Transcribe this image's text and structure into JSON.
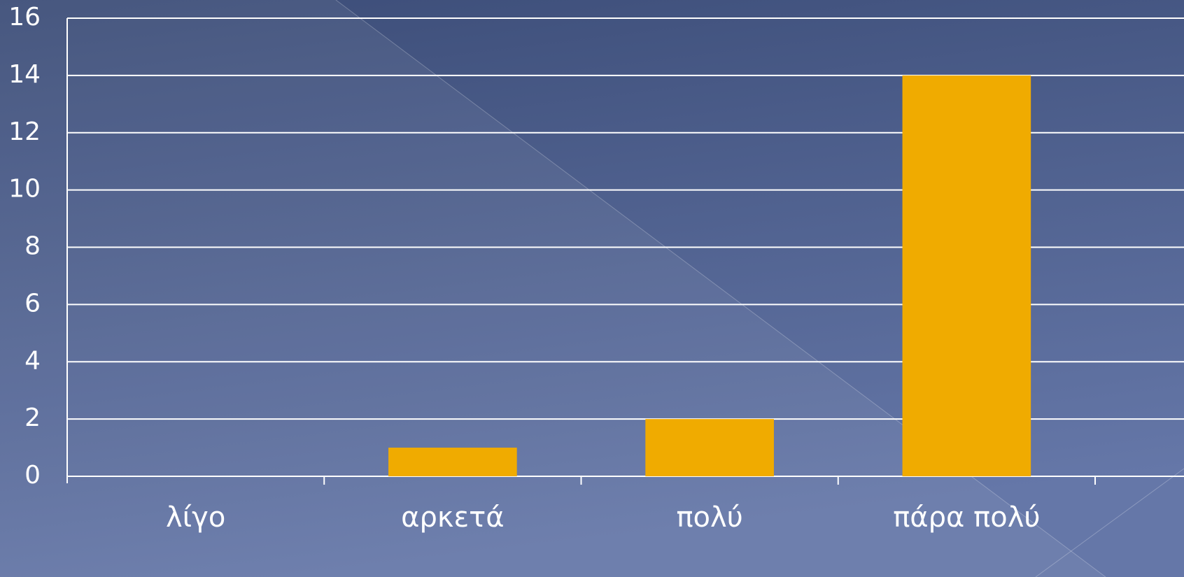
{
  "chart_data": {
    "type": "bar",
    "categories": [
      "λίγο",
      "αρκετά",
      "πολύ",
      "πάρα πολύ"
    ],
    "values": [
      0,
      1,
      2,
      14
    ],
    "color": "#f0ab00",
    "ylim": [
      0,
      16
    ],
    "yticks": [
      0,
      2,
      4,
      6,
      8,
      10,
      12,
      14,
      16
    ],
    "grid": true
  }
}
